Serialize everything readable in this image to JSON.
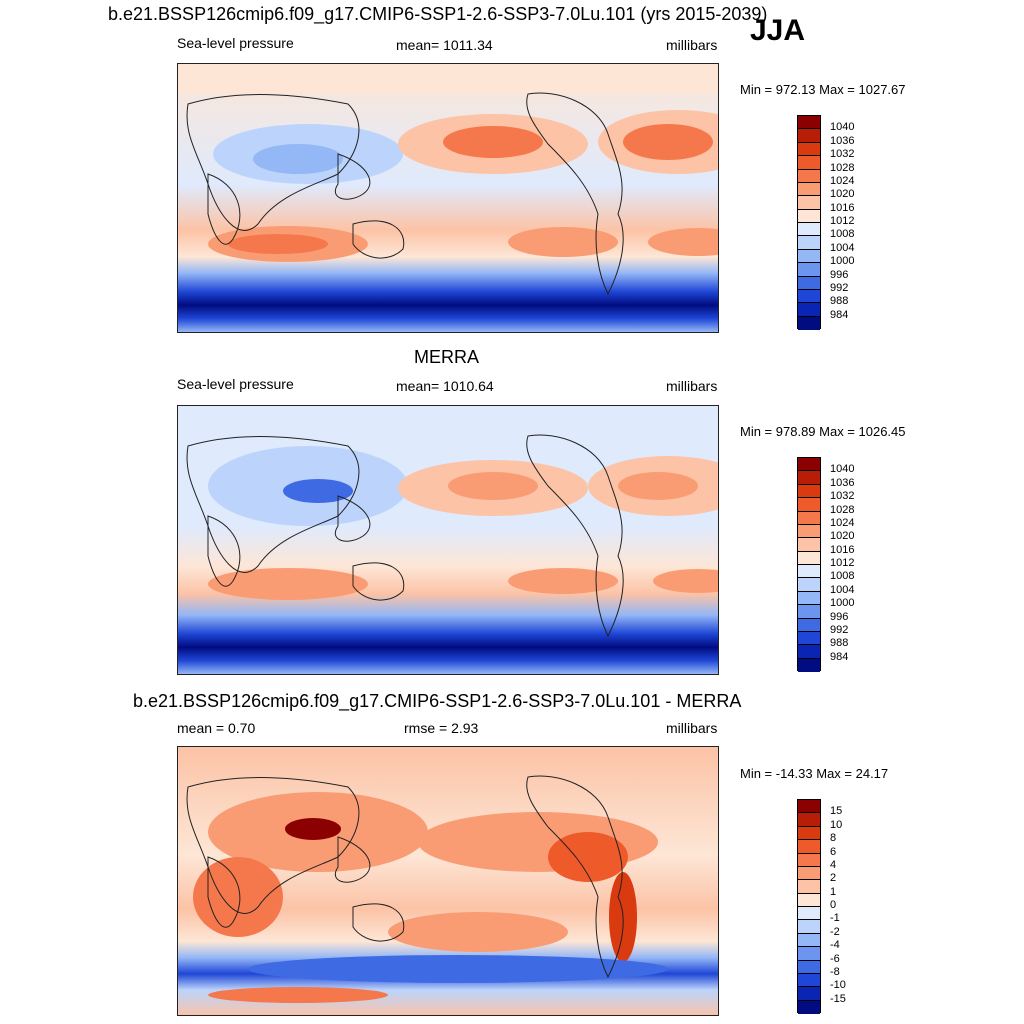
{
  "header": {
    "title": "b.e21.BSSP126cmip6.f09_g17.CMIP6-SSP1-2.6-SSP3-7.0Lu.101 (yrs 2015-2039)",
    "season": "JJA"
  },
  "panels": [
    {
      "id": "model",
      "title": "",
      "variable": "Sea-level pressure",
      "stat_text": "mean= 1011.34",
      "units": "millibars",
      "minmax": "Min = 972.13 Max = 1027.67",
      "colorbar_labels": [
        "1040",
        "1036",
        "1032",
        "1028",
        "1024",
        "1020",
        "1016",
        "1012",
        "1008",
        "1004",
        "1000",
        "996",
        "992",
        "988",
        "984"
      ]
    },
    {
      "id": "obs",
      "title": "MERRA",
      "variable": "Sea-level pressure",
      "stat_text": "mean= 1010.64",
      "units": "millibars",
      "minmax": "Min = 978.89 Max = 1026.45",
      "colorbar_labels": [
        "1040",
        "1036",
        "1032",
        "1028",
        "1024",
        "1020",
        "1016",
        "1012",
        "1008",
        "1004",
        "1000",
        "996",
        "992",
        "988",
        "984"
      ]
    },
    {
      "id": "diff",
      "title": "b.e21.BSSP126cmip6.f09_g17.CMIP6-SSP1-2.6-SSP3-7.0Lu.101 - MERRA",
      "mean_text": "mean =   0.70",
      "rmse_text": "rmse =   2.93",
      "units": "millibars",
      "minmax": "Min = -14.33 Max =  24.17",
      "colorbar_labels": [
        "15",
        "10",
        "8",
        "6",
        "4",
        "2",
        "1",
        "0",
        "-1",
        "-2",
        "-4",
        "-6",
        "-8",
        "-10",
        "-15"
      ]
    }
  ],
  "colors": {
    "colorbar_swatches": [
      "#8b0000",
      "#b81d07",
      "#d93a10",
      "#ef5a2a",
      "#f5784c",
      "#f99c74",
      "#fcc3a6",
      "#fde6d6",
      "#dfeafd",
      "#bcd4fb",
      "#94b7f6",
      "#6b95ef",
      "#3e6ae4",
      "#1f46d6",
      "#0a24b4",
      "#000c80"
    ],
    "background_land_low": "#d9e6fb",
    "high": "#f26b40"
  }
}
